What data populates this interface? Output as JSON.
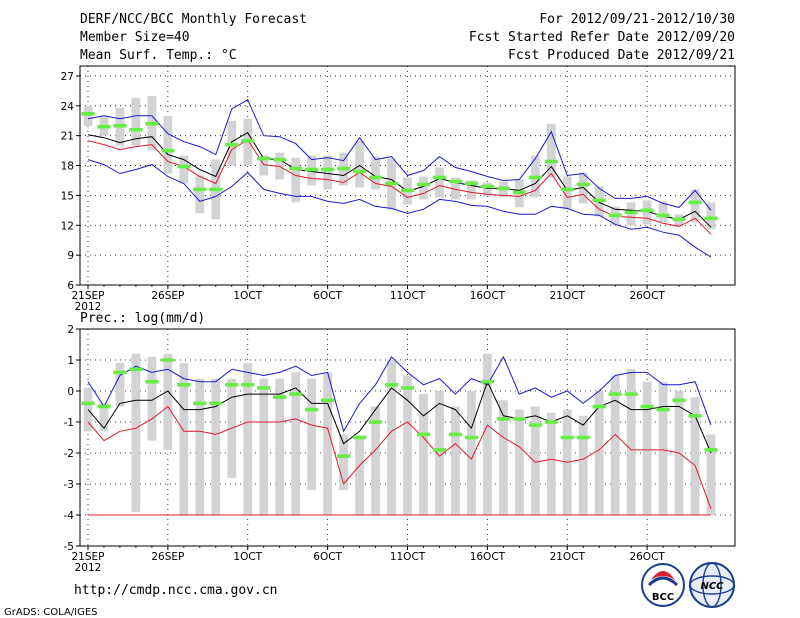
{
  "header": {
    "title": "DERF/NCC/BCC Monthly Forecast",
    "member_size": "Member Size=40",
    "variable": "Mean Surf. Temp.: °C",
    "period": "For 2012/09/21-2012/10/30",
    "started": "Fcst Started Refer Date 2012/09/20",
    "produced": "Fcst Produced Date 2012/09/21"
  },
  "footer": {
    "url": "http://cmdp.ncc.cma.gov.cn",
    "credit": "GrADS: COLA/IGES",
    "logo_bcc": "BCC",
    "logo_ncc": "NCC"
  },
  "colors": {
    "max": "#1a1ad6",
    "min": "#e01a2a",
    "mean": "#000000",
    "box": "#d3d3d5",
    "median": "#66ee44"
  },
  "chart_data": [
    {
      "type": "box",
      "title": "Mean Surf. Temp.: °C",
      "x": [
        1,
        2,
        3,
        4,
        5,
        6,
        7,
        8,
        9,
        10,
        11,
        12,
        13,
        14,
        15,
        16,
        17,
        18,
        19,
        20,
        21,
        22,
        23,
        24,
        25,
        26,
        27,
        28,
        29,
        30,
        31,
        32,
        33,
        34,
        35,
        36,
        37,
        38,
        39,
        40
      ],
      "xticks": [
        {
          "x": 1,
          "label": "21SEP",
          "sub": "2012"
        },
        {
          "x": 6,
          "label": "26SEP",
          "sub": ""
        },
        {
          "x": 11,
          "label": "1OCT",
          "sub": ""
        },
        {
          "x": 16,
          "label": "6OCT",
          "sub": ""
        },
        {
          "x": 21,
          "label": "11OCT",
          "sub": ""
        },
        {
          "x": 26,
          "label": "16OCT",
          "sub": ""
        },
        {
          "x": 31,
          "label": "21OCT",
          "sub": ""
        },
        {
          "x": 36,
          "label": "26OCT",
          "sub": ""
        }
      ],
      "ylim": [
        6,
        28
      ],
      "yticks": [
        6,
        9,
        12,
        15,
        18,
        21,
        24,
        27
      ],
      "series": [
        {
          "name": "max",
          "values": [
            18.6,
            18.1,
            17.2,
            17.6,
            18.1,
            16.9,
            16.2,
            14.4,
            14.9,
            15.9,
            17.3,
            15.6,
            15.2,
            14.9,
            14.9,
            14.4,
            14.2,
            14.6,
            13.9,
            13.7,
            13.2,
            13.6,
            14.6,
            14.4,
            14.0,
            13.9,
            13.4,
            13.1,
            13.1,
            13.9,
            13.7,
            13.1,
            13.0,
            12.1,
            11.6,
            11.8,
            11.3,
            11.0,
            9.8,
            8.8
          ]
        },
        {
          "name": "median",
          "values": [
            23.2,
            21.9,
            22.0,
            21.6,
            22.2,
            19.5,
            17.9,
            15.6,
            15.6,
            20.1,
            20.5,
            18.7,
            18.6,
            17.7,
            17.6,
            17.6,
            17.7,
            17.4,
            16.8,
            16.2,
            15.5,
            16.1,
            16.8,
            16.4,
            16.2,
            15.9,
            15.7,
            15.3,
            16.8,
            18.4,
            15.6,
            16.1,
            14.5,
            13.0,
            13.3,
            13.5,
            13.0,
            12.6,
            14.3,
            12.7
          ]
        },
        {
          "name": "mean",
          "values": [
            21.1,
            20.8,
            20.3,
            20.7,
            20.9,
            19.1,
            18.6,
            17.6,
            16.9,
            20.4,
            21.3,
            18.7,
            18.6,
            17.6,
            17.4,
            17.2,
            17.0,
            18.0,
            16.9,
            16.6,
            15.4,
            15.9,
            16.7,
            16.3,
            16.0,
            15.7,
            15.7,
            15.5,
            16.2,
            17.9,
            15.5,
            15.8,
            14.3,
            13.6,
            13.5,
            13.4,
            12.9,
            12.6,
            13.4,
            11.8
          ]
        },
        {
          "name": "min",
          "values": [
            20.5,
            20.1,
            19.6,
            19.9,
            20.1,
            18.4,
            17.9,
            16.9,
            16.2,
            19.6,
            20.6,
            18.1,
            17.9,
            17.0,
            16.7,
            16.6,
            16.3,
            17.3,
            16.2,
            15.9,
            14.8,
            15.2,
            16.0,
            15.6,
            15.3,
            15.1,
            15.0,
            14.9,
            15.5,
            17.2,
            14.8,
            15.1,
            13.6,
            12.9,
            12.8,
            12.7,
            12.2,
            11.9,
            12.7,
            11.1
          ]
        },
        {
          "name": "maxline",
          "values": [
            22.7,
            23.0,
            22.7,
            23.0,
            23.0,
            21.2,
            20.4,
            19.9,
            19.1,
            23.7,
            24.6,
            21.0,
            20.9,
            20.2,
            18.6,
            18.8,
            18.5,
            20.8,
            18.6,
            18.9,
            17.0,
            17.5,
            18.9,
            17.8,
            17.4,
            16.9,
            16.5,
            16.6,
            18.7,
            21.4,
            17.0,
            17.2,
            15.7,
            14.7,
            14.7,
            14.9,
            14.2,
            13.8,
            15.5,
            13.5
          ]
        }
      ],
      "boxes": [
        [
          22.0,
          24.0
        ],
        [
          21.0,
          23.0
        ],
        [
          20.0,
          23.8
        ],
        [
          20.0,
          24.8
        ],
        [
          19.5,
          25.0
        ],
        [
          17.2,
          23.0
        ],
        [
          16.2,
          19.0
        ],
        [
          13.2,
          17.0
        ],
        [
          12.6,
          18.6
        ],
        [
          18.0,
          22.5
        ],
        [
          18.0,
          22.7
        ],
        [
          17.0,
          19.0
        ],
        [
          16.6,
          19.3
        ],
        [
          14.3,
          18.8
        ],
        [
          16.0,
          19.0
        ],
        [
          15.6,
          19.0
        ],
        [
          16.0,
          19.3
        ],
        [
          15.8,
          20.5
        ],
        [
          15.6,
          18.9
        ],
        [
          13.6,
          18.7
        ],
        [
          14.1,
          16.8
        ],
        [
          14.6,
          16.9
        ],
        [
          14.8,
          17.8
        ],
        [
          14.6,
          16.8
        ],
        [
          14.6,
          16.5
        ],
        [
          14.9,
          16.3
        ],
        [
          14.8,
          16.4
        ],
        [
          13.8,
          16.6
        ],
        [
          14.8,
          19.0
        ],
        [
          16.8,
          22.2
        ],
        [
          13.6,
          16.9
        ],
        [
          14.2,
          17.3
        ],
        [
          12.9,
          15.9
        ],
        [
          12.0,
          13.9
        ],
        [
          12.0,
          14.3
        ],
        [
          12.1,
          14.5
        ],
        [
          12.3,
          14.4
        ],
        [
          11.9,
          13.1
        ],
        [
          12.3,
          15.6
        ],
        [
          11.6,
          14.3
        ]
      ]
    },
    {
      "type": "box",
      "title": "Prec.: log(mm/d)",
      "x": [
        1,
        2,
        3,
        4,
        5,
        6,
        7,
        8,
        9,
        10,
        11,
        12,
        13,
        14,
        15,
        16,
        17,
        18,
        19,
        20,
        21,
        22,
        23,
        24,
        25,
        26,
        27,
        28,
        29,
        30,
        31,
        32,
        33,
        34,
        35,
        36,
        37,
        38,
        39,
        40
      ],
      "xticks": [
        {
          "x": 1,
          "label": "21SEP",
          "sub": "2012"
        },
        {
          "x": 6,
          "label": "26SEP",
          "sub": ""
        },
        {
          "x": 11,
          "label": "1OCT",
          "sub": ""
        },
        {
          "x": 16,
          "label": "6OCT",
          "sub": ""
        },
        {
          "x": 21,
          "label": "11OCT",
          "sub": ""
        },
        {
          "x": 26,
          "label": "16OCT",
          "sub": ""
        },
        {
          "x": 31,
          "label": "21OCT",
          "sub": ""
        },
        {
          "x": 36,
          "label": "26OCT",
          "sub": ""
        }
      ],
      "ylim": [
        -5,
        2
      ],
      "yticks": [
        -5,
        -4,
        -3,
        -2,
        -1,
        0,
        1,
        2
      ],
      "series": [
        {
          "name": "median",
          "values": [
            -0.4,
            -0.5,
            0.6,
            0.7,
            0.3,
            1.0,
            0.2,
            -0.4,
            -0.4,
            0.2,
            0.2,
            0.1,
            -0.2,
            -0.1,
            -0.6,
            -0.3,
            -2.1,
            -1.5,
            -1.0,
            0.2,
            0.1,
            -1.4,
            -1.9,
            -1.4,
            -1.5,
            0.3,
            -0.9,
            -0.9,
            -1.1,
            -1.0,
            -1.5,
            -1.5,
            -0.5,
            -0.1,
            -0.1,
            -0.5,
            -0.6,
            -0.3,
            -0.8,
            -1.9
          ]
        },
        {
          "name": "maxline",
          "values": [
            0.3,
            -0.5,
            0.5,
            0.8,
            0.6,
            0.7,
            0.4,
            0.3,
            0.3,
            0.7,
            0.6,
            0.5,
            0.6,
            0.8,
            0.5,
            0.6,
            -1.3,
            -0.4,
            0.2,
            1.1,
            0.6,
            0.2,
            0.4,
            -0.1,
            0.4,
            0.2,
            1.1,
            -0.1,
            0.1,
            -0.2,
            0.0,
            -0.4,
            0.0,
            0.5,
            0.6,
            0.6,
            0.2,
            0.2,
            0.3,
            -1.1
          ]
        },
        {
          "name": "mean",
          "values": [
            -0.6,
            -1.2,
            -0.4,
            -0.3,
            -0.3,
            0.0,
            -0.6,
            -0.6,
            -0.5,
            -0.2,
            -0.1,
            -0.1,
            -0.1,
            0.1,
            -0.4,
            -0.4,
            -1.7,
            -1.3,
            -0.6,
            0.1,
            -0.3,
            -0.8,
            -0.4,
            -0.6,
            -1.2,
            0.3,
            -0.8,
            -0.9,
            -0.8,
            -1.0,
            -0.8,
            -1.1,
            -0.5,
            -0.3,
            -0.6,
            -0.6,
            -0.5,
            -0.5,
            -0.8,
            -2.0
          ]
        },
        {
          "name": "minline",
          "values": [
            -1.0,
            -1.6,
            -1.3,
            -1.2,
            -0.9,
            -0.5,
            -1.3,
            -1.3,
            -1.4,
            -1.2,
            -1.0,
            -1.0,
            -1.0,
            -0.9,
            -1.1,
            -1.2,
            -3.0,
            -2.4,
            -1.9,
            -1.3,
            -1.0,
            -1.5,
            -2.1,
            -1.7,
            -2.2,
            -1.1,
            -1.5,
            -1.8,
            -2.3,
            -2.2,
            -2.3,
            -2.2,
            -1.9,
            -1.4,
            -1.9,
            -1.9,
            -1.9,
            -2.0,
            -2.4,
            -3.8
          ]
        },
        {
          "name": "floor",
          "values": [
            -4,
            -4,
            -4,
            -4,
            -4,
            -4,
            -4,
            -4,
            -4,
            -4,
            -4,
            -4,
            -4,
            -4,
            -4,
            -4,
            -4,
            -4,
            -4,
            -4,
            -4,
            -4,
            -4,
            -4,
            -4,
            -4,
            -4,
            -4,
            -4,
            -4,
            -4,
            -4,
            -4,
            -4,
            -4,
            -4,
            -4,
            -4,
            -4,
            -4
          ]
        }
      ],
      "boxes": [
        [
          -1.3,
          0.1
        ],
        [
          -1.3,
          -0.4
        ],
        [
          -0.5,
          0.9
        ],
        [
          -3.9,
          1.2
        ],
        [
          -1.6,
          1.1
        ],
        [
          -1.9,
          1.2
        ],
        [
          -4.0,
          0.9
        ],
        [
          -4.0,
          0.4
        ],
        [
          -4.0,
          0.4
        ],
        [
          -2.8,
          0.4
        ],
        [
          -4.0,
          0.9
        ],
        [
          -4.0,
          0.4
        ],
        [
          -4.0,
          0.4
        ],
        [
          -4.0,
          0.6
        ],
        [
          -3.2,
          0.4
        ],
        [
          -4.0,
          0.6
        ],
        [
          -3.2,
          -1.4
        ],
        [
          -4.0,
          -1.5
        ],
        [
          -4.0,
          -0.5
        ],
        [
          -4.0,
          1.0
        ],
        [
          -4.0,
          0.5
        ],
        [
          -4.0,
          -0.1
        ],
        [
          -4.0,
          0.0
        ],
        [
          -4.0,
          -0.5
        ],
        [
          -4.0,
          0.0
        ],
        [
          -4.0,
          1.2
        ],
        [
          -4.0,
          -0.3
        ],
        [
          -4.0,
          -0.6
        ],
        [
          -4.0,
          -0.5
        ],
        [
          -4.0,
          -0.7
        ],
        [
          -4.0,
          -0.6
        ],
        [
          -4.0,
          -0.8
        ],
        [
          -4.0,
          0.0
        ],
        [
          -4.0,
          0.5
        ],
        [
          -4.0,
          0.7
        ],
        [
          -4.0,
          0.3
        ],
        [
          -4.0,
          0.3
        ],
        [
          -4.0,
          0.0
        ],
        [
          -4.0,
          -0.2
        ],
        [
          -4.0,
          -1.4
        ]
      ]
    }
  ]
}
